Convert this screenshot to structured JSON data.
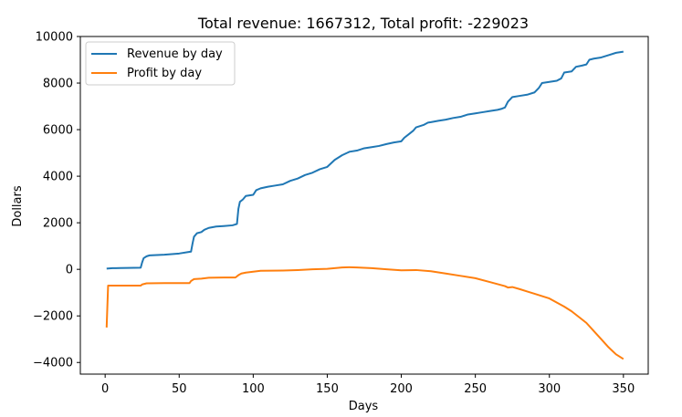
{
  "chart_data": {
    "type": "line",
    "title": "Total revenue: 1667312, Total profit: -229023",
    "xlabel": "Days",
    "ylabel": "Dollars",
    "xlim": [
      -16.75,
      366.75
    ],
    "ylim": [
      -4500,
      10000
    ],
    "xticks": [
      0,
      50,
      100,
      150,
      200,
      250,
      300,
      350
    ],
    "yticks": [
      -4000,
      -2000,
      0,
      2000,
      4000,
      6000,
      8000,
      10000
    ],
    "grid": false,
    "legend_position": "upper-left",
    "colors": {
      "revenue": "#1f77b4",
      "profit": "#ff7f0e"
    },
    "series": [
      {
        "name": "Revenue by day",
        "key": "revenue",
        "points": [
          [
            1,
            30
          ],
          [
            5,
            50
          ],
          [
            10,
            55
          ],
          [
            15,
            60
          ],
          [
            24,
            70
          ],
          [
            25,
            300
          ],
          [
            26,
            480
          ],
          [
            28,
            560
          ],
          [
            30,
            600
          ],
          [
            40,
            630
          ],
          [
            50,
            680
          ],
          [
            56,
            740
          ],
          [
            58,
            760
          ],
          [
            59,
            1100
          ],
          [
            60,
            1400
          ],
          [
            62,
            1550
          ],
          [
            65,
            1600
          ],
          [
            67,
            1700
          ],
          [
            70,
            1780
          ],
          [
            75,
            1840
          ],
          [
            80,
            1860
          ],
          [
            86,
            1890
          ],
          [
            89,
            1950
          ],
          [
            90,
            2600
          ],
          [
            91,
            2900
          ],
          [
            93,
            3000
          ],
          [
            95,
            3150
          ],
          [
            100,
            3200
          ],
          [
            102,
            3400
          ],
          [
            105,
            3480
          ],
          [
            110,
            3550
          ],
          [
            115,
            3600
          ],
          [
            120,
            3650
          ],
          [
            125,
            3800
          ],
          [
            130,
            3900
          ],
          [
            135,
            4050
          ],
          [
            140,
            4150
          ],
          [
            145,
            4300
          ],
          [
            150,
            4400
          ],
          [
            155,
            4700
          ],
          [
            160,
            4900
          ],
          [
            165,
            5050
          ],
          [
            170,
            5100
          ],
          [
            175,
            5200
          ],
          [
            180,
            5250
          ],
          [
            185,
            5300
          ],
          [
            190,
            5380
          ],
          [
            195,
            5450
          ],
          [
            200,
            5500
          ],
          [
            202,
            5650
          ],
          [
            205,
            5800
          ],
          [
            208,
            5950
          ],
          [
            210,
            6100
          ],
          [
            215,
            6200
          ],
          [
            218,
            6300
          ],
          [
            220,
            6320
          ],
          [
            225,
            6380
          ],
          [
            230,
            6430
          ],
          [
            235,
            6500
          ],
          [
            240,
            6550
          ],
          [
            245,
            6650
          ],
          [
            250,
            6700
          ],
          [
            255,
            6750
          ],
          [
            260,
            6800
          ],
          [
            265,
            6850
          ],
          [
            268,
            6900
          ],
          [
            270,
            6950
          ],
          [
            272,
            7200
          ],
          [
            275,
            7400
          ],
          [
            280,
            7450
          ],
          [
            285,
            7500
          ],
          [
            290,
            7600
          ],
          [
            293,
            7800
          ],
          [
            295,
            8000
          ],
          [
            300,
            8050
          ],
          [
            305,
            8100
          ],
          [
            308,
            8200
          ],
          [
            310,
            8450
          ],
          [
            315,
            8500
          ],
          [
            318,
            8700
          ],
          [
            322,
            8750
          ],
          [
            325,
            8800
          ],
          [
            327,
            9000
          ],
          [
            330,
            9050
          ],
          [
            335,
            9100
          ],
          [
            340,
            9200
          ],
          [
            345,
            9300
          ],
          [
            350,
            9350
          ]
        ]
      },
      {
        "name": "Profit by day",
        "key": "profit",
        "points": [
          [
            1,
            -2500
          ],
          [
            2,
            -700
          ],
          [
            10,
            -700
          ],
          [
            20,
            -700
          ],
          [
            24,
            -700
          ],
          [
            25,
            -650
          ],
          [
            28,
            -600
          ],
          [
            40,
            -590
          ],
          [
            57,
            -590
          ],
          [
            58,
            -500
          ],
          [
            60,
            -420
          ],
          [
            65,
            -400
          ],
          [
            70,
            -360
          ],
          [
            80,
            -350
          ],
          [
            88,
            -350
          ],
          [
            90,
            -250
          ],
          [
            92,
            -180
          ],
          [
            95,
            -140
          ],
          [
            100,
            -100
          ],
          [
            105,
            -60
          ],
          [
            120,
            -50
          ],
          [
            130,
            -30
          ],
          [
            140,
            0
          ],
          [
            150,
            20
          ],
          [
            155,
            50
          ],
          [
            160,
            80
          ],
          [
            165,
            90
          ],
          [
            170,
            80
          ],
          [
            180,
            50
          ],
          [
            190,
            0
          ],
          [
            200,
            -40
          ],
          [
            210,
            -30
          ],
          [
            220,
            -80
          ],
          [
            230,
            -180
          ],
          [
            240,
            -280
          ],
          [
            250,
            -380
          ],
          [
            260,
            -550
          ],
          [
            270,
            -720
          ],
          [
            272,
            -780
          ],
          [
            275,
            -760
          ],
          [
            280,
            -850
          ],
          [
            285,
            -950
          ],
          [
            290,
            -1050
          ],
          [
            300,
            -1250
          ],
          [
            310,
            -1600
          ],
          [
            315,
            -1800
          ],
          [
            320,
            -2050
          ],
          [
            325,
            -2300
          ],
          [
            330,
            -2650
          ],
          [
            335,
            -3000
          ],
          [
            340,
            -3350
          ],
          [
            345,
            -3650
          ],
          [
            350,
            -3850
          ]
        ]
      }
    ]
  }
}
